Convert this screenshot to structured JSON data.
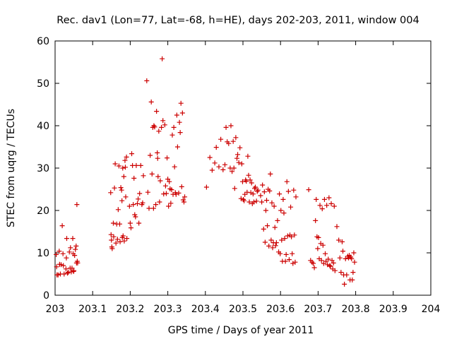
{
  "chart_data": {
    "type": "scatter",
    "title": "Rec. dav1 (Lon=77, Lat=-68, h=HE), days 202-203, 2011, window 004",
    "xlabel": "GPS time / Days of year 2011",
    "ylabel": "STEC from uqrg / TECUs",
    "xlim": [
      203,
      204
    ],
    "ylim": [
      0,
      60
    ],
    "xticks": [
      "203",
      "203.1",
      "203.2",
      "203.3",
      "203.4",
      "203.5",
      "203.6",
      "203.7",
      "203.8",
      "203.9",
      "204"
    ],
    "yticks": [
      "0",
      "10",
      "20",
      "30",
      "40",
      "50",
      "60"
    ],
    "grid": false,
    "marker": "+",
    "color": "#cc0000",
    "points": [
      [
        203.003,
        9.6
      ],
      [
        203.004,
        6.7
      ],
      [
        203.005,
        4.8
      ],
      [
        203.008,
        4.8
      ],
      [
        203.011,
        10.4
      ],
      [
        203.012,
        7.3
      ],
      [
        203.014,
        5.0
      ],
      [
        203.016,
        7.2
      ],
      [
        203.019,
        16.4
      ],
      [
        203.021,
        9.8
      ],
      [
        203.022,
        7.0
      ],
      [
        203.024,
        5.0
      ],
      [
        203.029,
        6.2
      ],
      [
        203.03,
        8.8
      ],
      [
        203.031,
        13.4
      ],
      [
        203.033,
        5.2
      ],
      [
        203.035,
        5.4
      ],
      [
        203.038,
        10.2
      ],
      [
        203.04,
        6.4
      ],
      [
        203.041,
        11.2
      ],
      [
        203.043,
        5.5
      ],
      [
        203.045,
        6.4
      ],
      [
        203.047,
        13.4
      ],
      [
        203.048,
        9.8
      ],
      [
        203.049,
        5.6
      ],
      [
        203.05,
        5.8
      ],
      [
        203.052,
        9.4
      ],
      [
        203.054,
        10.8
      ],
      [
        203.056,
        11.6
      ],
      [
        203.057,
        7.6
      ],
      [
        203.058,
        21.4
      ],
      [
        203.059,
        8.0
      ],
      [
        203.06,
        7.6
      ],
      [
        203.148,
        24.2
      ],
      [
        203.149,
        14.3
      ],
      [
        203.15,
        13.0
      ],
      [
        203.151,
        11.4
      ],
      [
        203.152,
        11.0
      ],
      [
        203.155,
        17.0
      ],
      [
        203.156,
        13.8
      ],
      [
        203.158,
        25.3
      ],
      [
        203.16,
        31.0
      ],
      [
        203.162,
        12.3
      ],
      [
        203.164,
        16.8
      ],
      [
        203.166,
        13.2
      ],
      [
        203.168,
        20.2
      ],
      [
        203.17,
        30.5
      ],
      [
        203.172,
        16.8
      ],
      [
        203.173,
        12.6
      ],
      [
        203.175,
        25.4
      ],
      [
        203.177,
        24.8
      ],
      [
        203.178,
        22.3
      ],
      [
        203.179,
        13.6
      ],
      [
        203.18,
        30.0
      ],
      [
        203.181,
        14.0
      ],
      [
        203.183,
        28.0
      ],
      [
        203.184,
        12.8
      ],
      [
        203.186,
        31.8
      ],
      [
        203.187,
        30.2
      ],
      [
        203.188,
        23.2
      ],
      [
        203.19,
        32.6
      ],
      [
        203.191,
        13.4
      ],
      [
        203.198,
        21.0
      ],
      [
        203.2,
        17.0
      ],
      [
        203.202,
        15.9
      ],
      [
        203.204,
        33.4
      ],
      [
        203.206,
        30.6
      ],
      [
        203.208,
        21.4
      ],
      [
        203.21,
        27.6
      ],
      [
        203.212,
        19.0
      ],
      [
        203.214,
        18.5
      ],
      [
        203.216,
        30.6
      ],
      [
        203.219,
        21.6
      ],
      [
        203.221,
        22.7
      ],
      [
        203.223,
        17.0
      ],
      [
        203.225,
        24.0
      ],
      [
        203.228,
        30.6
      ],
      [
        203.231,
        21.4
      ],
      [
        203.233,
        21.8
      ],
      [
        203.235,
        28.2
      ],
      [
        203.244,
        50.6
      ],
      [
        203.247,
        24.3
      ],
      [
        203.25,
        20.5
      ],
      [
        203.253,
        33.0
      ],
      [
        203.256,
        45.6
      ],
      [
        203.258,
        28.6
      ],
      [
        203.26,
        39.6
      ],
      [
        203.262,
        20.5
      ],
      [
        203.263,
        40.0
      ],
      [
        203.265,
        39.7
      ],
      [
        203.268,
        21.4
      ],
      [
        203.27,
        43.4
      ],
      [
        203.272,
        33.6
      ],
      [
        203.273,
        32.3
      ],
      [
        203.274,
        28.0
      ],
      [
        203.276,
        38.7
      ],
      [
        203.278,
        22.0
      ],
      [
        203.28,
        27.0
      ],
      [
        203.283,
        39.6
      ],
      [
        203.285,
        55.8
      ],
      [
        203.287,
        41.2
      ],
      [
        203.289,
        23.9
      ],
      [
        203.292,
        40.2
      ],
      [
        203.294,
        25.8
      ],
      [
        203.296,
        24.0
      ],
      [
        203.298,
        32.4
      ],
      [
        203.3,
        27.4
      ],
      [
        203.302,
        21.0
      ],
      [
        203.304,
        26.8
      ],
      [
        203.306,
        25.1
      ],
      [
        203.308,
        21.7
      ],
      [
        203.31,
        24.9
      ],
      [
        203.312,
        37.8
      ],
      [
        203.314,
        23.8
      ],
      [
        203.316,
        39.6
      ],
      [
        203.318,
        30.3
      ],
      [
        203.32,
        24.2
      ],
      [
        203.322,
        23.8
      ],
      [
        203.324,
        42.5
      ],
      [
        203.326,
        35.0
      ],
      [
        203.329,
        24.1
      ],
      [
        203.331,
        40.8
      ],
      [
        203.333,
        38.4
      ],
      [
        203.335,
        45.3
      ],
      [
        203.337,
        25.6
      ],
      [
        203.339,
        43.0
      ],
      [
        203.341,
        22.5
      ],
      [
        203.343,
        22.0
      ],
      [
        203.345,
        23.2
      ],
      [
        203.403,
        25.5
      ],
      [
        203.412,
        32.5
      ],
      [
        203.418,
        29.5
      ],
      [
        203.425,
        31.2
      ],
      [
        203.429,
        34.9
      ],
      [
        203.436,
        30.3
      ],
      [
        203.441,
        36.8
      ],
      [
        203.447,
        29.6
      ],
      [
        203.452,
        30.8
      ],
      [
        203.455,
        39.6
      ],
      [
        203.458,
        36.2
      ],
      [
        203.462,
        35.8
      ],
      [
        203.466,
        30.0
      ],
      [
        203.468,
        40.0
      ],
      [
        203.471,
        29.2
      ],
      [
        203.474,
        36.3
      ],
      [
        203.476,
        30.0
      ],
      [
        203.478,
        25.2
      ],
      [
        203.481,
        37.2
      ],
      [
        203.484,
        32.3
      ],
      [
        203.486,
        33.2
      ],
      [
        203.489,
        31.3
      ],
      [
        203.492,
        34.8
      ],
      [
        203.495,
        22.8
      ],
      [
        203.497,
        31.0
      ],
      [
        203.499,
        26.8
      ],
      [
        203.501,
        22.6
      ],
      [
        203.503,
        22.3
      ],
      [
        203.505,
        23.8
      ],
      [
        203.507,
        27.2
      ],
      [
        203.509,
        26.9
      ],
      [
        203.511,
        24.3
      ],
      [
        203.513,
        32.8
      ],
      [
        203.515,
        28.3
      ],
      [
        203.517,
        22.0
      ],
      [
        203.519,
        27.2
      ],
      [
        203.521,
        24.2
      ],
      [
        203.523,
        26.5
      ],
      [
        203.525,
        21.6
      ],
      [
        203.527,
        23.9
      ],
      [
        203.529,
        22.0
      ],
      [
        203.531,
        25.2
      ],
      [
        203.533,
        25.5
      ],
      [
        203.536,
        22.2
      ],
      [
        203.538,
        24.5
      ],
      [
        203.54,
        24.8
      ],
      [
        203.547,
        23.5
      ],
      [
        203.55,
        22.0
      ],
      [
        203.552,
        26.0
      ],
      [
        203.555,
        15.6
      ],
      [
        203.557,
        24.4
      ],
      [
        203.559,
        12.5
      ],
      [
        203.561,
        20.0
      ],
      [
        203.563,
        22.4
      ],
      [
        203.565,
        16.4
      ],
      [
        203.567,
        25.0
      ],
      [
        203.569,
        11.6
      ],
      [
        203.571,
        24.6
      ],
      [
        203.573,
        28.6
      ],
      [
        203.575,
        13.0
      ],
      [
        203.577,
        21.8
      ],
      [
        203.579,
        11.2
      ],
      [
        203.581,
        12.4
      ],
      [
        203.583,
        21.0
      ],
      [
        203.585,
        16.0
      ],
      [
        203.587,
        11.7
      ],
      [
        203.589,
        12.4
      ],
      [
        203.592,
        17.6
      ],
      [
        203.595,
        10.2
      ],
      [
        203.597,
        23.9
      ],
      [
        203.599,
        9.8
      ],
      [
        203.601,
        20.0
      ],
      [
        203.603,
        13.0
      ],
      [
        203.605,
        8.0
      ],
      [
        203.607,
        22.6
      ],
      [
        203.609,
        19.4
      ],
      [
        203.611,
        13.4
      ],
      [
        203.613,
        8.0
      ],
      [
        203.615,
        9.6
      ],
      [
        203.617,
        26.8
      ],
      [
        203.619,
        14.0
      ],
      [
        203.621,
        24.5
      ],
      [
        203.623,
        8.4
      ],
      [
        203.625,
        14.2
      ],
      [
        203.627,
        20.8
      ],
      [
        203.629,
        13.8
      ],
      [
        203.631,
        9.8
      ],
      [
        203.633,
        7.5
      ],
      [
        203.635,
        24.8
      ],
      [
        203.637,
        14.2
      ],
      [
        203.639,
        7.8
      ],
      [
        203.641,
        23.2
      ],
      [
        203.675,
        24.9
      ],
      [
        203.68,
        8.2
      ],
      [
        203.684,
        7.8
      ],
      [
        203.687,
        7.5
      ],
      [
        203.69,
        6.5
      ],
      [
        203.693,
        17.6
      ],
      [
        203.695,
        22.6
      ],
      [
        203.697,
        13.8
      ],
      [
        203.699,
        11.0
      ],
      [
        203.701,
        13.6
      ],
      [
        203.703,
        8.6
      ],
      [
        203.705,
        21.2
      ],
      [
        203.707,
        12.2
      ],
      [
        203.709,
        8.2
      ],
      [
        203.711,
        20.4
      ],
      [
        203.713,
        11.8
      ],
      [
        203.715,
        7.5
      ],
      [
        203.717,
        22.6
      ],
      [
        203.719,
        9.8
      ],
      [
        203.721,
        8.0
      ],
      [
        203.723,
        21.2
      ],
      [
        203.725,
        7.2
      ],
      [
        203.727,
        8.5
      ],
      [
        203.729,
        23.0
      ],
      [
        203.731,
        7.0
      ],
      [
        203.733,
        6.8
      ],
      [
        203.735,
        21.6
      ],
      [
        203.737,
        8.2
      ],
      [
        203.739,
        6.2
      ],
      [
        203.741,
        7.6
      ],
      [
        203.743,
        21.0
      ],
      [
        203.745,
        5.8
      ],
      [
        203.75,
        16.2
      ],
      [
        203.755,
        13.0
      ],
      [
        203.758,
        8.8
      ],
      [
        203.761,
        5.4
      ],
      [
        203.764,
        12.6
      ],
      [
        203.766,
        10.4
      ],
      [
        203.768,
        4.8
      ],
      [
        203.77,
        2.6
      ],
      [
        203.773,
        8.6
      ],
      [
        203.776,
        4.8
      ],
      [
        203.779,
        9.2
      ],
      [
        203.781,
        8.8
      ],
      [
        203.783,
        9.4
      ],
      [
        203.785,
        3.6
      ],
      [
        203.787,
        9.0
      ],
      [
        203.789,
        8.6
      ],
      [
        203.791,
        3.6
      ],
      [
        203.793,
        5.4
      ],
      [
        203.795,
        10.0
      ],
      [
        203.797,
        7.8
      ]
    ]
  }
}
